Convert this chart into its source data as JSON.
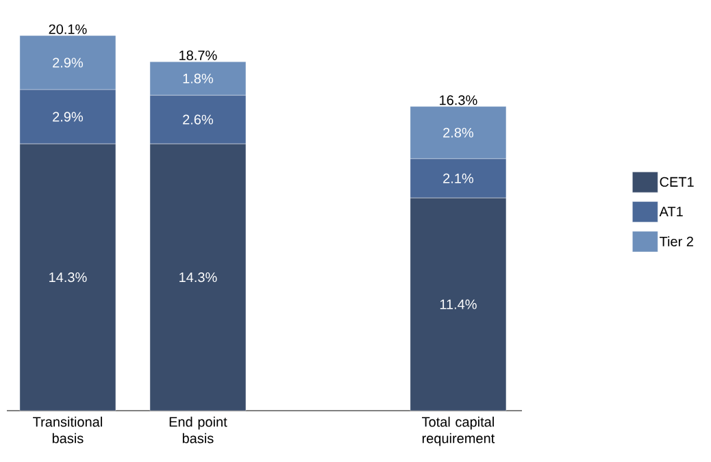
{
  "chart_data": {
    "type": "bar",
    "stacked": true,
    "categories": [
      "Transitional basis",
      "End point basis",
      null,
      "Total capital requirement"
    ],
    "series": [
      {
        "name": "CET1",
        "color": "#3a4d6b",
        "values": [
          14.3,
          14.3,
          null,
          11.4
        ],
        "value_labels": [
          "14.3%",
          "14.3%",
          null,
          "11.4%"
        ]
      },
      {
        "name": "AT1",
        "color": "#4a6898",
        "values": [
          2.9,
          2.6,
          null,
          2.1
        ],
        "value_labels": [
          "2.9%",
          "2.6%",
          null,
          "2.1%"
        ]
      },
      {
        "name": "Tier 2",
        "color": "#6d8fbb",
        "values": [
          2.9,
          1.8,
          null,
          2.8
        ],
        "value_labels": [
          "2.9%",
          "1.8%",
          null,
          "2.8%"
        ]
      }
    ],
    "totals": [
      "20.1%",
      "18.7%",
      null,
      "16.3%"
    ],
    "legend": "right"
  }
}
